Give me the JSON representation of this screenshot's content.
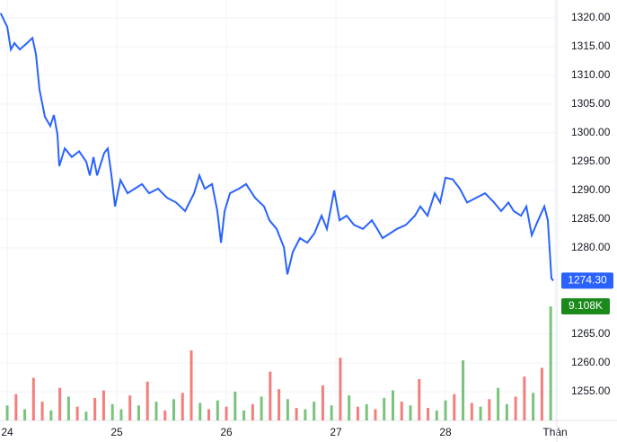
{
  "chart_data": {
    "type": "line",
    "x": [
      23.94,
      24.0,
      24.033,
      24.066,
      24.115,
      24.18,
      24.23,
      24.262,
      24.295,
      24.344,
      24.393,
      24.426,
      24.459,
      24.475,
      24.525,
      24.59,
      24.656,
      24.721,
      24.754,
      24.787,
      24.82,
      24.885,
      24.918,
      24.951,
      24.984,
      25.033,
      25.098,
      25.164,
      25.23,
      25.295,
      25.377,
      25.459,
      25.541,
      25.623,
      25.705,
      25.754,
      25.803,
      25.869,
      25.918,
      25.951,
      25.984,
      26.033,
      26.115,
      26.18,
      26.262,
      26.344,
      26.393,
      26.459,
      26.525,
      26.557,
      26.607,
      26.672,
      26.738,
      26.803,
      26.869,
      26.918,
      26.984,
      27.033,
      27.098,
      27.164,
      27.246,
      27.328,
      27.377,
      27.426,
      27.492,
      27.557,
      27.639,
      27.721,
      27.77,
      27.836,
      27.902,
      27.951,
      28.0,
      28.066,
      28.131,
      28.197,
      28.279,
      28.361,
      28.443,
      28.508,
      28.574,
      28.623,
      28.689,
      28.738,
      28.787,
      28.836,
      28.902,
      28.934,
      28.967,
      28.984
    ],
    "series": [
      {
        "color": "#2962ff",
        "values": [
          1320.8,
          1318.4,
          1314.5,
          1315.6,
          1314.5,
          1315.6,
          1316.5,
          1313.7,
          1307.5,
          1302.8,
          1301.2,
          1303.1,
          1299.7,
          1294.2,
          1297.3,
          1295.8,
          1296.8,
          1295.0,
          1292.6,
          1295.8,
          1292.6,
          1296.5,
          1297.3,
          1292.6,
          1287.2,
          1291.8,
          1289.5,
          1290.3,
          1291.1,
          1289.5,
          1290.3,
          1288.7,
          1287.9,
          1286.4,
          1289.5,
          1292.6,
          1290.3,
          1291.1,
          1286.4,
          1280.9,
          1286.4,
          1289.5,
          1290.3,
          1291.1,
          1288.7,
          1287.2,
          1284.8,
          1283.3,
          1280.1,
          1275.4,
          1279.3,
          1281.7,
          1280.9,
          1282.5,
          1285.6,
          1283.3,
          1290.0,
          1284.8,
          1285.6,
          1284.0,
          1283.3,
          1284.8,
          1283.3,
          1281.7,
          1282.5,
          1283.3,
          1284.0,
          1285.6,
          1287.2,
          1285.6,
          1289.5,
          1287.9,
          1292.2,
          1291.9,
          1290.3,
          1287.9,
          1288.7,
          1289.5,
          1287.9,
          1286.4,
          1287.9,
          1286.4,
          1285.6,
          1287.2,
          1282.2,
          1284.4,
          1287.2,
          1284.8,
          1274.7,
          1274.3
        ]
      }
    ],
    "price_label": "1274.30",
    "xlim": [
      23.934,
      29.016
    ],
    "xticks": [
      24,
      25,
      26,
      27,
      28,
      {
        "value": 29,
        "label": "Thán"
      }
    ],
    "ylim": [
      1250,
      1323.1
    ],
    "yticks": [
      1255,
      1260,
      1265,
      1280,
      1285,
      1290,
      1295,
      1300,
      1305,
      1310,
      1315,
      1320
    ],
    "yticks_labels": [
      {
        "value": 1255,
        "label": "1255.00"
      },
      {
        "value": 1260,
        "label": "1260.00"
      },
      {
        "value": 1265,
        "label": "1265.00"
      },
      {
        "value": 1280,
        "label": "1280.00"
      },
      {
        "value": 1285,
        "label": "1285.00"
      },
      {
        "value": 1290,
        "label": "1290.00"
      },
      {
        "value": 1295,
        "label": "1295.00"
      },
      {
        "value": 1300,
        "label": "1300.00"
      },
      {
        "value": 1305,
        "label": "1305.00"
      },
      {
        "value": 1310,
        "label": "1310.00"
      },
      {
        "value": 1315,
        "label": "1315.00"
      },
      {
        "value": 1320,
        "label": "1320.00"
      }
    ],
    "grid": true,
    "volume": {
      "x": [
        24.0,
        24.08,
        24.16,
        24.24,
        24.32,
        24.4,
        24.48,
        24.56,
        24.64,
        24.72,
        24.8,
        24.88,
        24.96,
        25.04,
        25.12,
        25.2,
        25.28,
        25.36,
        25.44,
        25.52,
        25.6,
        25.68,
        25.76,
        25.84,
        25.92,
        26.0,
        26.08,
        26.16,
        26.24,
        26.32,
        26.4,
        26.48,
        26.56,
        26.64,
        26.72,
        26.8,
        26.88,
        26.96,
        27.04,
        27.12,
        27.2,
        27.28,
        27.36,
        27.44,
        27.52,
        27.6,
        27.68,
        27.76,
        27.84,
        27.92,
        28.0,
        28.08,
        28.16,
        28.24,
        28.32,
        28.4,
        28.48,
        28.56,
        28.64,
        28.72,
        28.8,
        28.88,
        28.96
      ],
      "values": [
        1200,
        2100,
        900,
        3400,
        1500,
        800,
        2600,
        1900,
        1100,
        700,
        1800,
        2400,
        1300,
        900,
        2000,
        1200,
        3100,
        1500,
        800,
        1700,
        2200,
        5600,
        1400,
        900,
        1600,
        1100,
        2300,
        800,
        1300,
        1900,
        3900,
        2500,
        1700,
        1000,
        900,
        1500,
        2800,
        1200,
        5000,
        2000,
        1100,
        1300,
        900,
        1800,
        2400,
        1500,
        1200,
        3300,
        1000,
        800,
        1600,
        2100,
        4800,
        1400,
        1100,
        1700,
        2600,
        1300,
        1900,
        3500,
        2200,
        4200,
        9108
      ],
      "up": [
        true,
        false,
        true,
        false,
        false,
        true,
        false,
        true,
        false,
        true,
        false,
        false,
        true,
        true,
        false,
        true,
        false,
        true,
        false,
        true,
        false,
        false,
        true,
        false,
        true,
        false,
        true,
        true,
        false,
        true,
        false,
        false,
        true,
        false,
        true,
        true,
        false,
        true,
        false,
        true,
        false,
        true,
        false,
        true,
        true,
        false,
        true,
        false,
        false,
        true,
        true,
        false,
        true,
        false,
        true,
        false,
        true,
        true,
        false,
        false,
        true,
        false,
        true
      ],
      "up_color": "#4caf50",
      "down_color": "#ef5350",
      "value_labels": "9.108K"
    }
  }
}
